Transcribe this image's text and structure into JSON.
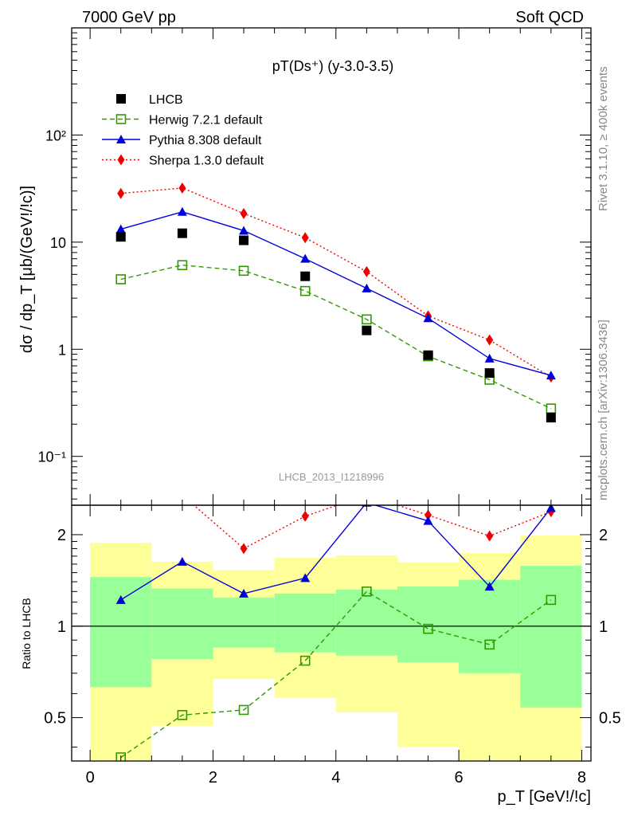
{
  "header": {
    "energy_label": "7000 GeV pp",
    "category_label": "Soft QCD"
  },
  "side_labels": {
    "rivet": "Rivet 3.1.10, ≥ 400k events",
    "source": "mcplots.cern.ch [arXiv:1306.3436]"
  },
  "chart_data": [
    {
      "type": "scatter",
      "title": "pT(Ds⁺) (y-3.0-3.5)",
      "analysis_label": "LHCB_2013_I1218996",
      "ylabel": "dσ / dp_T [μb/(GeV!/!c)]",
      "y_scale": "log",
      "xlim": [
        -0.3,
        8.15
      ],
      "ylim": [
        0.035,
        1000
      ],
      "y_ticks": [
        {
          "value": 0.1,
          "label": "10⁻¹"
        },
        {
          "value": 1,
          "label": "1"
        },
        {
          "value": 10,
          "label": "10"
        },
        {
          "value": 100,
          "label": "10²"
        }
      ],
      "legend_position": "top-left",
      "series": [
        {
          "name": "LHCB",
          "color": "#000000",
          "marker": "square-filled",
          "line": "none",
          "x": [
            0.5,
            1.5,
            2.5,
            3.5,
            4.5,
            5.5,
            6.5,
            7.5
          ],
          "y": [
            11.2,
            12.1,
            10.4,
            4.8,
            1.5,
            0.88,
            0.6,
            0.23
          ]
        },
        {
          "name": "Herwig 7.2.1 default",
          "color": "#339900",
          "marker": "square-open",
          "line": "dashed",
          "x": [
            0.5,
            1.5,
            2.5,
            3.5,
            4.5,
            5.5,
            6.5,
            7.5
          ],
          "y": [
            4.5,
            6.1,
            5.4,
            3.5,
            1.9,
            0.86,
            0.52,
            0.28
          ]
        },
        {
          "name": "Pythia 8.308 default",
          "color": "#0000dd",
          "marker": "triangle-filled",
          "line": "solid",
          "x": [
            0.5,
            1.5,
            2.5,
            3.5,
            4.5,
            5.5,
            6.5,
            7.5
          ],
          "y": [
            13.2,
            19.2,
            12.8,
            7.0,
            3.7,
            1.95,
            0.82,
            0.57
          ]
        },
        {
          "name": "Sherpa 1.3.0 default",
          "color": "#ee0000",
          "marker": "diamond-filled",
          "line": "dotted",
          "x": [
            0.5,
            1.5,
            2.5,
            3.5,
            4.5,
            5.5,
            6.5,
            7.5
          ],
          "y": [
            28.5,
            32.0,
            18.5,
            11.0,
            5.3,
            2.05,
            1.22,
            0.55
          ]
        }
      ]
    },
    {
      "type": "line",
      "ylabel": "Ratio to LHCB",
      "xlabel": "p_T [GeV!/!c]",
      "xlim": [
        -0.3,
        8.15
      ],
      "ylim": [
        0.36,
        2.5
      ],
      "y_scale": "log",
      "x_ticks": [
        0,
        2,
        4,
        6,
        8
      ],
      "y_ticks": [
        {
          "value": 0.5,
          "label": "0.5"
        },
        {
          "value": 1,
          "label": "1"
        },
        {
          "value": 2,
          "label": "2"
        }
      ],
      "reference_line": 1,
      "bands": {
        "bins": [
          [
            0,
            1
          ],
          [
            1,
            2
          ],
          [
            2,
            3
          ],
          [
            3,
            4
          ],
          [
            4,
            5
          ],
          [
            5,
            6
          ],
          [
            6,
            7
          ],
          [
            7,
            8
          ]
        ],
        "inner": {
          "color": "#99ff99",
          "low": [
            0.63,
            0.78,
            0.85,
            0.82,
            0.8,
            0.76,
            0.7,
            0.54
          ],
          "high": [
            1.45,
            1.33,
            1.24,
            1.28,
            1.32,
            1.35,
            1.42,
            1.58
          ]
        },
        "outer": {
          "color": "#ffff99",
          "low": [
            0.36,
            0.47,
            0.67,
            0.58,
            0.52,
            0.4,
            0.36,
            0.36
          ],
          "high": [
            1.88,
            1.63,
            1.53,
            1.68,
            1.71,
            1.62,
            1.74,
            1.99
          ]
        }
      },
      "series": [
        {
          "name": "Herwig 7.2.1 default",
          "color": "#339900",
          "marker": "square-open",
          "line": "dashed",
          "x": [
            0.5,
            1.5,
            2.5,
            3.5,
            4.5,
            5.5,
            6.5,
            7.5
          ],
          "y": [
            0.37,
            0.51,
            0.53,
            0.77,
            1.3,
            0.98,
            0.87,
            1.22
          ]
        },
        {
          "name": "Pythia 8.308 default",
          "color": "#0000dd",
          "marker": "triangle-filled",
          "line": "solid",
          "x": [
            0.5,
            1.5,
            2.5,
            3.5,
            4.5,
            5.5,
            6.5,
            7.5
          ],
          "y": [
            1.22,
            1.63,
            1.28,
            1.44,
            2.55,
            2.22,
            1.35,
            2.45
          ]
        },
        {
          "name": "Sherpa 1.3.0 default",
          "color": "#ee0000",
          "marker": "diamond-filled",
          "line": "dotted",
          "x": [
            0.5,
            1.5,
            2.5,
            3.5,
            4.5,
            5.5,
            6.5,
            7.5
          ],
          "y": [
            2.6,
            2.7,
            1.8,
            2.3,
            2.7,
            2.32,
            1.98,
            2.38
          ]
        }
      ]
    }
  ]
}
